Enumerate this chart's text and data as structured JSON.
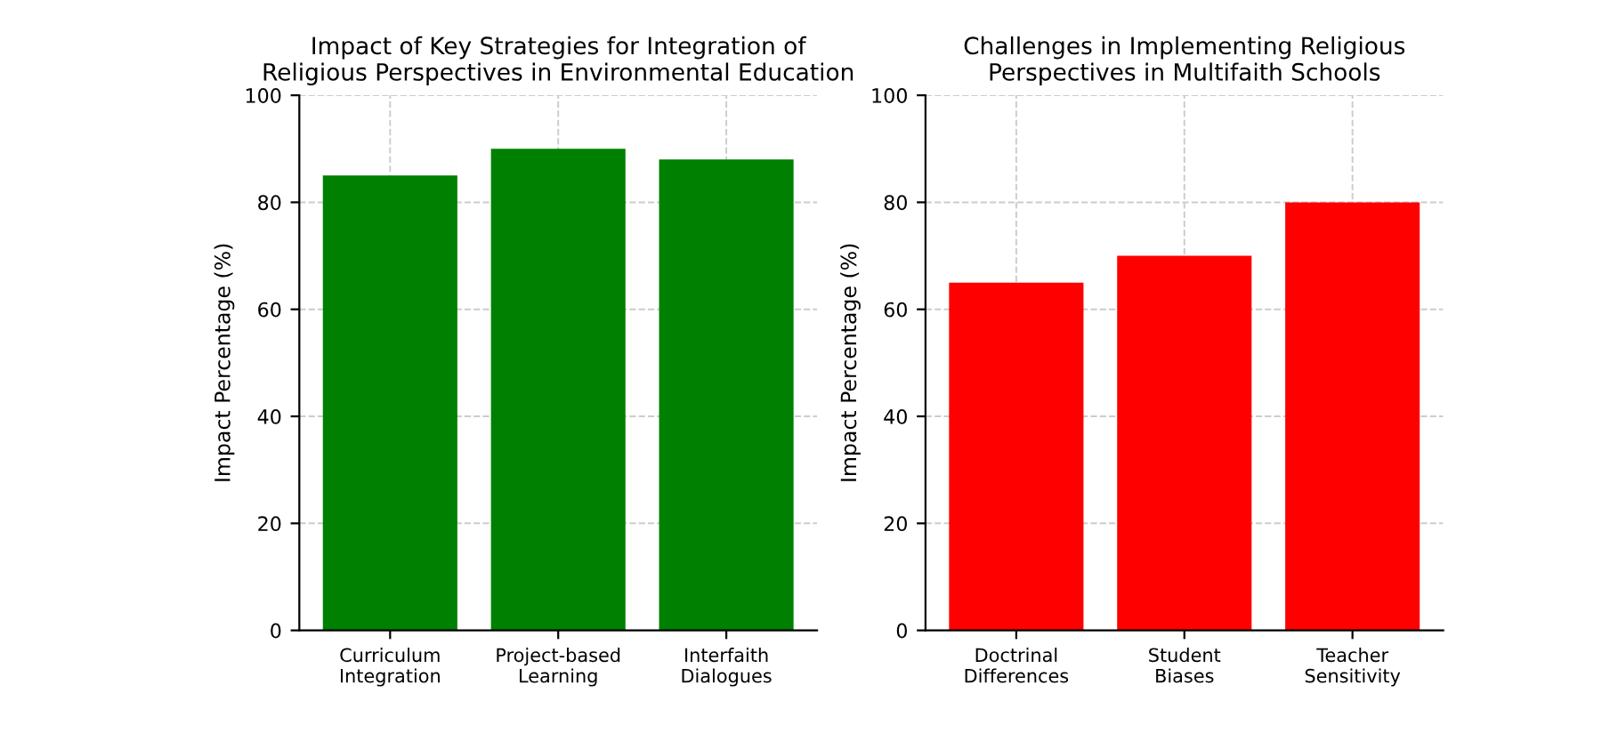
{
  "chart_data": [
    {
      "type": "bar",
      "title": "Impact of Key Strategies for Integration of Religious Perspectives in Environmental Education",
      "ylabel": "Impact Percentage (%)",
      "categories": [
        "Curriculum Integration",
        "Project-based Learning",
        "Interfaith Dialogues"
      ],
      "values": [
        85,
        90,
        88
      ],
      "color": "#008000",
      "ylim": [
        0,
        100
      ],
      "yticks": [
        0,
        20,
        40,
        60,
        80,
        100
      ],
      "grid": true
    },
    {
      "type": "bar",
      "title": "Challenges in Implementing Religious Perspectives in Multifaith Schools",
      "ylabel": "Impact Percentage (%)",
      "categories": [
        "Doctrinal Differences",
        "Student Biases",
        "Teacher Sensitivity"
      ],
      "values": [
        65,
        70,
        80
      ],
      "color": "#ff0000",
      "ylim": [
        0,
        100
      ],
      "yticks": [
        0,
        20,
        40,
        60,
        80,
        100
      ],
      "grid": true
    }
  ]
}
